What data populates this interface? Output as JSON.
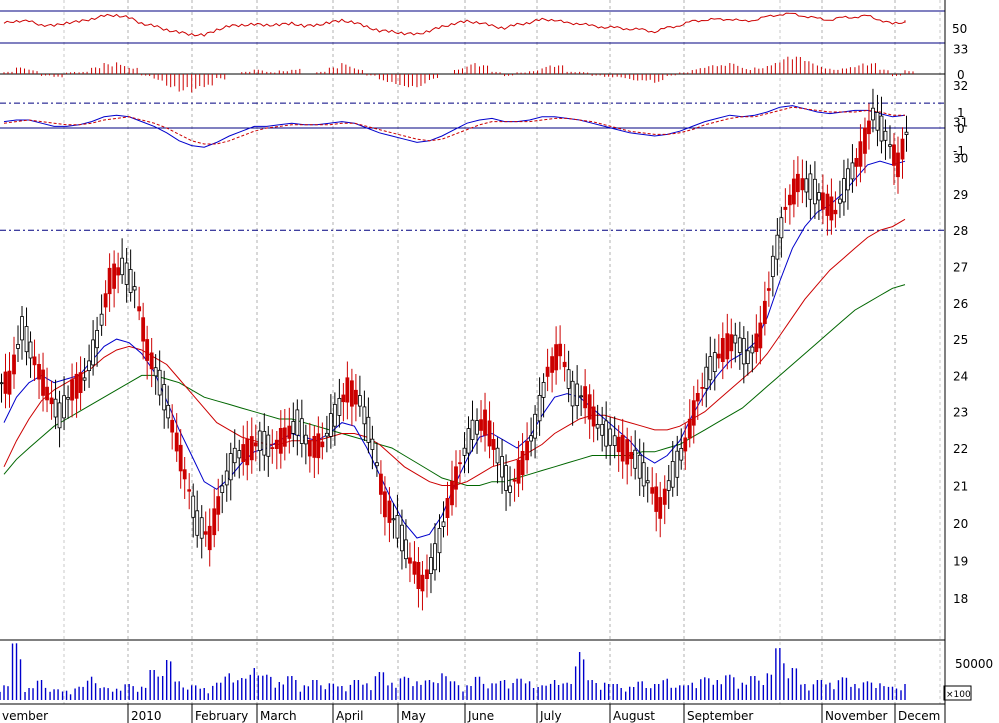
{
  "chart_data": {
    "type": "candlestick",
    "months": [
      "vember",
      "2010",
      "February",
      "March",
      "April",
      "May",
      "June",
      "July",
      "August",
      "September",
      "November",
      "Decem"
    ],
    "price": {
      "yticks": [
        18,
        19,
        20,
        21,
        22,
        23,
        24,
        25,
        26,
        27,
        28,
        29,
        30,
        31,
        32,
        33
      ],
      "ylim": [
        17.5,
        33.5
      ],
      "resistance_levels": [
        31.5,
        28.0
      ],
      "closes_weekly": [
        23.8,
        25.3,
        24.4,
        23.5,
        22.9,
        23.6,
        23.9,
        25.0,
        26.6,
        27.0,
        26.4,
        24.7,
        23.8,
        22.6,
        21.3,
        20.0,
        19.6,
        20.9,
        21.8,
        21.9,
        22.2,
        22.0,
        22.3,
        22.7,
        22.0,
        22.1,
        22.9,
        23.6,
        23.3,
        22.1,
        20.5,
        19.9,
        19.0,
        18.4,
        19.1,
        20.4,
        21.6,
        22.5,
        22.7,
        21.8,
        20.9,
        21.6,
        22.6,
        24.1,
        24.7,
        23.5,
        23.4,
        22.6,
        22.3,
        22.0,
        21.7,
        21.1,
        20.4,
        21.3,
        22.1,
        23.4,
        24.2,
        24.7,
        25.0,
        24.5,
        25.1,
        27.0,
        28.6,
        29.3,
        29.2,
        28.8,
        28.5,
        29.4,
        30.1,
        31.2,
        30.6,
        29.8,
        31.1
      ],
      "ma_blue": [
        22.7,
        23.4,
        23.8,
        24.0,
        23.8,
        23.9,
        24.0,
        24.4,
        24.8,
        25.0,
        24.9,
        24.6,
        24.1,
        23.3,
        22.5,
        21.8,
        21.1,
        20.9,
        21.2,
        21.6,
        21.9,
        22.0,
        22.2,
        22.4,
        22.3,
        22.2,
        22.4,
        22.7,
        22.6,
        22.0,
        21.3,
        20.6,
        20.0,
        19.6,
        19.7,
        20.2,
        21.0,
        21.7,
        22.3,
        22.4,
        22.2,
        22.0,
        22.3,
        22.9,
        23.4,
        23.5,
        23.4,
        23.1,
        22.8,
        22.5,
        22.2,
        21.8,
        21.6,
        21.8,
        22.2,
        22.9,
        23.5,
        24.0,
        24.4,
        24.6,
        24.9,
        25.6,
        26.6,
        27.5,
        28.1,
        28.5,
        28.7,
        29.0,
        29.4,
        29.8,
        29.9,
        29.8,
        29.9
      ],
      "ma_red": [
        21.5,
        22.2,
        22.8,
        23.3,
        23.6,
        23.8,
        24.0,
        24.2,
        24.5,
        24.7,
        24.8,
        24.7,
        24.5,
        24.3,
        23.9,
        23.5,
        23.1,
        22.7,
        22.5,
        22.3,
        22.2,
        22.1,
        22.1,
        22.2,
        22.2,
        22.2,
        22.3,
        22.4,
        22.4,
        22.3,
        22.1,
        21.8,
        21.5,
        21.3,
        21.1,
        21.0,
        21.0,
        21.1,
        21.3,
        21.5,
        21.6,
        21.7,
        21.9,
        22.1,
        22.4,
        22.6,
        22.8,
        22.9,
        22.9,
        22.8,
        22.7,
        22.6,
        22.5,
        22.5,
        22.6,
        22.8,
        23.0,
        23.3,
        23.6,
        23.9,
        24.2,
        24.6,
        25.1,
        25.6,
        26.1,
        26.5,
        26.9,
        27.2,
        27.5,
        27.8,
        28.0,
        28.1,
        28.3
      ],
      "ma_green": [
        21.3,
        21.7,
        22.0,
        22.3,
        22.6,
        22.8,
        23.0,
        23.2,
        23.4,
        23.6,
        23.8,
        24.0,
        24.0,
        23.9,
        23.8,
        23.6,
        23.4,
        23.3,
        23.2,
        23.1,
        23.0,
        22.9,
        22.8,
        22.8,
        22.7,
        22.6,
        22.5,
        22.4,
        22.3,
        22.2,
        22.1,
        22.0,
        21.8,
        21.6,
        21.4,
        21.2,
        21.1,
        21.0,
        21.0,
        21.1,
        21.1,
        21.2,
        21.3,
        21.4,
        21.5,
        21.6,
        21.7,
        21.8,
        21.8,
        21.8,
        21.8,
        21.9,
        21.9,
        22.0,
        22.1,
        22.3,
        22.5,
        22.7,
        22.9,
        23.1,
        23.4,
        23.7,
        24.0,
        24.3,
        24.6,
        24.9,
        25.2,
        25.5,
        25.8,
        26.0,
        26.2,
        26.4,
        26.5
      ]
    },
    "rsi": {
      "yticks": [
        50
      ],
      "ylim": [
        0,
        100
      ],
      "values": [
        58,
        64,
        62,
        55,
        52,
        60,
        61,
        68,
        74,
        76,
        70,
        58,
        52,
        44,
        38,
        34,
        32,
        44,
        52,
        54,
        56,
        54,
        55,
        58,
        52,
        54,
        60,
        64,
        60,
        50,
        42,
        40,
        36,
        34,
        42,
        50,
        58,
        62,
        60,
        52,
        48,
        55,
        60,
        66,
        66,
        58,
        58,
        52,
        50,
        48,
        46,
        44,
        40,
        48,
        54,
        62,
        66,
        66,
        68,
        62,
        66,
        72,
        78,
        78,
        74,
        68,
        66,
        70,
        72,
        74,
        66,
        56,
        62
      ]
    },
    "macd_hist": {
      "yticks": [
        0
      ],
      "values": [
        0.1,
        0.3,
        0.2,
        -0.1,
        -0.2,
        0.1,
        0.1,
        0.3,
        0.5,
        0.6,
        0.4,
        -0.1,
        -0.3,
        -0.6,
        -0.8,
        -0.9,
        -0.8,
        -0.3,
        0.0,
        0.1,
        0.2,
        0.1,
        0.2,
        0.3,
        0.0,
        0.1,
        0.3,
        0.5,
        0.3,
        -0.1,
        -0.4,
        -0.5,
        -0.6,
        -0.6,
        -0.3,
        0.0,
        0.3,
        0.5,
        0.4,
        0.1,
        -0.1,
        0.1,
        0.2,
        0.4,
        0.4,
        0.1,
        0.1,
        -0.1,
        -0.2,
        -0.2,
        -0.3,
        -0.3,
        -0.4,
        -0.1,
        0.1,
        0.3,
        0.4,
        0.4,
        0.5,
        0.3,
        0.4,
        0.6,
        0.8,
        0.8,
        0.6,
        0.4,
        0.3,
        0.4,
        0.5,
        0.5,
        0.2,
        -0.1,
        0.2
      ]
    },
    "macd": {
      "yticks": [
        1,
        0,
        -1
      ],
      "ylim": [
        -1.6,
        1.6
      ],
      "values": [
        0.4,
        0.5,
        0.5,
        0.3,
        0.1,
        0.1,
        0.2,
        0.4,
        0.7,
        0.8,
        0.7,
        0.4,
        0.1,
        -0.3,
        -0.8,
        -1.1,
        -1.2,
        -0.9,
        -0.5,
        -0.2,
        0.1,
        0.1,
        0.2,
        0.3,
        0.2,
        0.2,
        0.3,
        0.4,
        0.3,
        0.0,
        -0.3,
        -0.5,
        -0.7,
        -0.9,
        -0.8,
        -0.5,
        -0.1,
        0.3,
        0.5,
        0.6,
        0.4,
        0.4,
        0.5,
        0.7,
        0.7,
        0.6,
        0.5,
        0.3,
        0.1,
        -0.1,
        -0.3,
        -0.4,
        -0.5,
        -0.4,
        -0.2,
        0.1,
        0.4,
        0.6,
        0.8,
        0.7,
        0.8,
        1.0,
        1.3,
        1.4,
        1.2,
        1.0,
        0.9,
        1.0,
        1.1,
        1.1,
        0.9,
        0.7,
        0.8
      ],
      "signal": [
        0.3,
        0.4,
        0.5,
        0.4,
        0.3,
        0.2,
        0.2,
        0.3,
        0.5,
        0.6,
        0.7,
        0.5,
        0.3,
        0.0,
        -0.4,
        -0.8,
        -1.0,
        -1.0,
        -0.8,
        -0.5,
        -0.2,
        0.0,
        0.1,
        0.2,
        0.2,
        0.2,
        0.2,
        0.3,
        0.3,
        0.1,
        -0.1,
        -0.3,
        -0.5,
        -0.7,
        -0.8,
        -0.7,
        -0.4,
        -0.1,
        0.2,
        0.4,
        0.4,
        0.4,
        0.4,
        0.5,
        0.6,
        0.6,
        0.5,
        0.4,
        0.2,
        0.0,
        -0.2,
        -0.3,
        -0.4,
        -0.4,
        -0.3,
        -0.1,
        0.2,
        0.4,
        0.6,
        0.7,
        0.7,
        0.9,
        1.1,
        1.3,
        1.2,
        1.1,
        1.0,
        1.0,
        1.0,
        1.1,
        1.0,
        0.8,
        0.8
      ]
    },
    "volume": {
      "ytick_label": "50000",
      "scale_label": "×100",
      "ylim": [
        0,
        90000
      ],
      "values": [
        22000,
        85000,
        18000,
        30000,
        16000,
        14000,
        20000,
        35000,
        19000,
        17000,
        24000,
        20000,
        45000,
        60000,
        28000,
        22000,
        18000,
        26000,
        40000,
        33000,
        48000,
        38000,
        27000,
        36000,
        22000,
        30000,
        25000,
        21000,
        30000,
        25000,
        42000,
        26000,
        35000,
        28000,
        30000,
        40000,
        28000,
        22000,
        35000,
        25000,
        30000,
        32000,
        28000,
        22000,
        30000,
        26000,
        72000,
        30000,
        26000,
        24000,
        20000,
        28000,
        24000,
        32000,
        22000,
        26000,
        34000,
        30000,
        38000,
        26000,
        36000,
        40000,
        78000,
        48000,
        24000,
        30000,
        26000,
        34000,
        24000,
        28000,
        25000,
        20000,
        24000
      ]
    }
  }
}
